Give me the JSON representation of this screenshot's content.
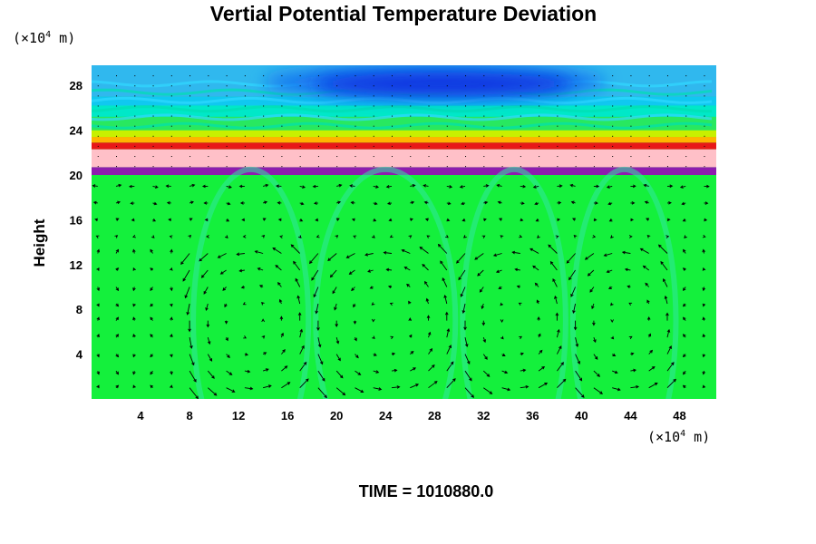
{
  "chart_data": {
    "type": "heatmap",
    "title": "Vertial Potential Temperature Deviation",
    "ylabel": "Height",
    "x_unit": "(×10",
    "y_unit": "(×10",
    "unit_exp": "4",
    "unit_tail": " m)",
    "x_ticks": [
      4,
      8,
      12,
      16,
      20,
      24,
      28,
      32,
      36,
      40,
      44,
      48
    ],
    "y_ticks": [
      4,
      8,
      12,
      16,
      20,
      24,
      28
    ],
    "xlim": [
      0,
      51
    ],
    "ylim": [
      0,
      29.8
    ],
    "layers": [
      {
        "y_from": 20.0,
        "y_to": 20.7,
        "color": "#8e1cae"
      },
      {
        "y_from": 20.7,
        "y_to": 22.3,
        "color": "#ffc0c8"
      },
      {
        "y_from": 22.3,
        "y_to": 22.9,
        "color": "#e81818"
      },
      {
        "y_from": 22.9,
        "y_to": 23.4,
        "color": "#ffb400"
      },
      {
        "y_from": 23.4,
        "y_to": 24.0,
        "color": "#c8f000"
      },
      {
        "y_from": 24.0,
        "y_to": 25.2,
        "color": "#28e860"
      },
      {
        "y_from": 25.2,
        "y_to": 26.2,
        "color": "#00e8c8"
      },
      {
        "y_from": 26.2,
        "y_to": 27.0,
        "color": "#10c8f0"
      },
      {
        "y_from": 27.0,
        "y_to": 29.8,
        "color": "#30b8ee"
      }
    ],
    "background_color": "#14f03c",
    "cold_cell": {
      "x_center": 28,
      "y_center": 28.3,
      "x_radius": 14,
      "y_radius": 1.4,
      "color": "#1030e0"
    },
    "circulation_cells": [
      {
        "x_from": 8,
        "x_to": 18
      },
      {
        "x_from": 18,
        "x_to": 30
      },
      {
        "x_from": 30,
        "x_to": 39
      },
      {
        "x_from": 39,
        "x_to": 48
      }
    ]
  },
  "footer": {
    "time_label": "TIME = 1010880.0"
  }
}
